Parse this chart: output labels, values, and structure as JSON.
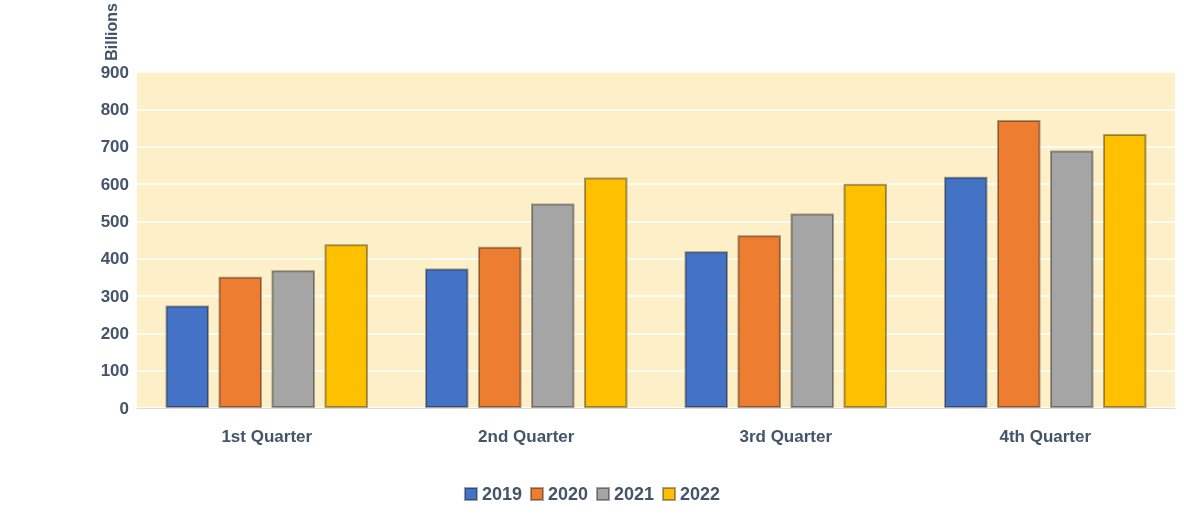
{
  "chart_data": {
    "type": "bar",
    "ylabel": "Billions",
    "categories": [
      "1st Quarter",
      "2nd Quarter",
      "3rd Quarter",
      "4th Quarter"
    ],
    "series": [
      {
        "name": "2019",
        "color": "#4472c4",
        "values": [
          275,
          374,
          420,
          620
        ]
      },
      {
        "name": "2020",
        "color": "#ed7d31",
        "values": [
          352,
          432,
          463,
          772
        ]
      },
      {
        "name": "2021",
        "color": "#a5a5a5",
        "values": [
          369,
          548,
          521,
          690
        ]
      },
      {
        "name": "2022",
        "color": "#ffc000",
        "values": [
          439,
          618,
          601,
          734
        ]
      }
    ],
    "ylim": [
      0,
      900
    ],
    "yticks": [
      0,
      100,
      200,
      300,
      400,
      500,
      600,
      700,
      800,
      900
    ],
    "grid": "y",
    "legend": "bottom"
  }
}
